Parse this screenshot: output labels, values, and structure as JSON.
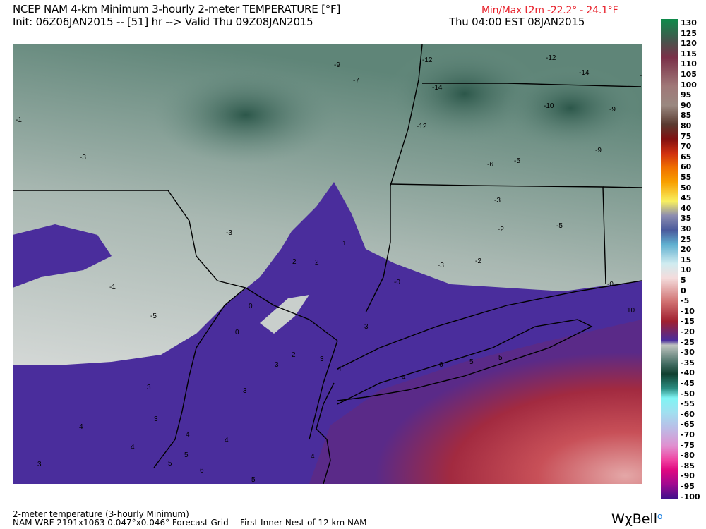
{
  "header": {
    "title": "NCEP NAM 4-km Minimum 3-hourly 2-meter TEMPERATURE [°F]",
    "minmax": "Min/Max t2m -22.2° -  24.1°F",
    "init": "Init: 06Z06JAN2015 -- [51] hr --> Valid Thu 09Z08JAN2015",
    "local_time": "Thu 04:00 EST 08JAN2015"
  },
  "footer": {
    "line1": "2-meter temperature (3-hourly Minimum)",
    "line2": "NAM-WRF 2191x1063 0.047°x0.046° Forecast Grid -- First Inner Nest of 12 km NAM",
    "logo": "WχBell"
  },
  "colorbar": {
    "labels": [
      "130",
      "125",
      "120",
      "115",
      "110",
      "105",
      "100",
      "95",
      "90",
      "85",
      "80",
      "75",
      "70",
      "65",
      "60",
      "55",
      "50",
      "45",
      "40",
      "35",
      "30",
      "25",
      "20",
      "15",
      "10",
      "5",
      "0",
      "-5",
      "-10",
      "-15",
      "-20",
      "-25",
      "-30",
      "-35",
      "-40",
      "-45",
      "-50",
      "-55",
      "-60",
      "-65",
      "-70",
      "-75",
      "-80",
      "-85",
      "-90",
      "-95",
      "-100"
    ],
    "colors": {
      "cold_gray": "#c8cfcb",
      "cold_green": "#2f5f4f",
      "freezing_purple": "#4a2d9c",
      "warm_red": "#b52d3c",
      "warm_pink": "#e4a7a7"
    }
  },
  "map": {
    "contour_labels": [
      "-9",
      "-7",
      "-12",
      "-14",
      "-12",
      "-14",
      "-9",
      "-10",
      "-9",
      "-12",
      "-1",
      "-9",
      "-3",
      "-6",
      "-5",
      "-3",
      "-5",
      "-3",
      "-2",
      "-5",
      "1",
      "2",
      "2",
      "-3",
      "-2",
      "-1",
      "-0",
      "0",
      "-0",
      "-5",
      "10",
      "0",
      "3",
      "2",
      "3",
      "3",
      "4",
      "6",
      "5",
      "5",
      "4",
      "3",
      "3",
      "3",
      "4",
      "4",
      "4",
      "4",
      "5",
      "5",
      "6",
      "3",
      "4",
      "5"
    ]
  }
}
